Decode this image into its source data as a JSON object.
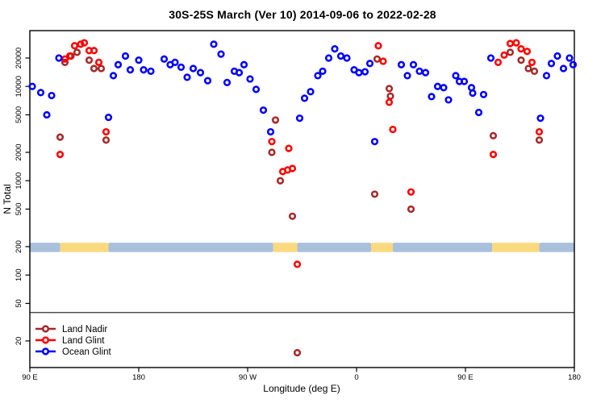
{
  "title": "30S-25S March (Ver 10)   2014-09-06 to 2022-02-28",
  "axes": {
    "x": {
      "label": "Longitude (deg E)",
      "ticks": [
        {
          "lon": 90,
          "label": "90 E"
        },
        {
          "lon": 180,
          "label": "180"
        },
        {
          "lon": 270,
          "label": "90 W"
        },
        {
          "lon": 360,
          "label": "0"
        },
        {
          "lon": 450,
          "label": "90 E"
        },
        {
          "lon": 540,
          "label": "180"
        }
      ]
    },
    "y": {
      "label": "N Total",
      "scale": "log",
      "ticks": [
        20,
        50,
        100,
        200,
        500,
        1000,
        2000,
        5000,
        10000,
        20000
      ]
    }
  },
  "legend": [
    {
      "label": "Land Nadir",
      "color": "#A52A2A"
    },
    {
      "label": "Land Glint",
      "color": "#FF0000"
    },
    {
      "label": "Ocean Glint",
      "color": "#0000FF"
    }
  ],
  "chart_data": {
    "type": "scatter",
    "title": "30S-25S March (Ver 10)   2014-09-06 to 2022-02-28",
    "xlabel": "Longitude (deg E)",
    "ylabel": "N Total",
    "x_axis_deg_e_continuous": [
      90,
      540
    ],
    "y_scale": "log",
    "ylim": [
      10,
      40000
    ],
    "threshold_line_n": 40,
    "marker": "open-circle",
    "series": [
      {
        "name": "Land Nadir",
        "color": "#A52A2A",
        "points": [
          [
            129,
            23000
          ],
          [
            124,
            21000
          ],
          [
            119,
            18000
          ],
          [
            139,
            19000
          ],
          [
            143,
            15500
          ],
          [
            149,
            15500
          ],
          [
            153,
            2700
          ],
          [
            115,
            2900
          ],
          [
            293,
            4400
          ],
          [
            290,
            2000
          ],
          [
            297,
            1000
          ],
          [
            307,
            420
          ],
          [
            311,
            15
          ],
          [
            375,
            720
          ],
          [
            377,
            19500
          ],
          [
            387,
            9500
          ],
          [
            388,
            7900
          ],
          [
            405,
            500
          ],
          [
            473,
            3000
          ],
          [
            487,
            23000
          ],
          [
            496,
            19000
          ],
          [
            502,
            15500
          ],
          [
            507,
            14500
          ],
          [
            511,
            2700
          ]
        ]
      },
      {
        "name": "Land Glint",
        "color": "#FF0000",
        "points": [
          [
            127,
            27000
          ],
          [
            132,
            28000
          ],
          [
            135,
            29000
          ],
          [
            139,
            24000
          ],
          [
            143,
            24000
          ],
          [
            123,
            21000
          ],
          [
            119,
            19500
          ],
          [
            147,
            18000
          ],
          [
            153,
            3300
          ],
          [
            115,
            1900
          ],
          [
            290,
            2600
          ],
          [
            304,
            2200
          ],
          [
            299,
            1250
          ],
          [
            303,
            1300
          ],
          [
            307,
            1350
          ],
          [
            311,
            130
          ],
          [
            378,
            27000
          ],
          [
            382,
            18500
          ],
          [
            387,
            6800
          ],
          [
            390,
            3500
          ],
          [
            405,
            760
          ],
          [
            473,
            1900
          ],
          [
            477,
            18000
          ],
          [
            482,
            21500
          ],
          [
            487,
            28500
          ],
          [
            492,
            29000
          ],
          [
            496,
            25000
          ],
          [
            501,
            23500
          ],
          [
            505,
            18000
          ],
          [
            511,
            3300
          ]
        ]
      },
      {
        "name": "Ocean Glint",
        "color": "#0000FF",
        "points": [
          [
            92,
            10000
          ],
          [
            99,
            8600
          ],
          [
            108,
            8000
          ],
          [
            104,
            5000
          ],
          [
            114,
            20000
          ],
          [
            155,
            4700
          ],
          [
            159,
            13000
          ],
          [
            163,
            17000
          ],
          [
            169,
            21000
          ],
          [
            173,
            15000
          ],
          [
            180,
            19000
          ],
          [
            184,
            15000
          ],
          [
            190,
            14500
          ],
          [
            201,
            19500
          ],
          [
            206,
            17000
          ],
          [
            210,
            18000
          ],
          [
            215,
            16000
          ],
          [
            220,
            12500
          ],
          [
            225,
            15500
          ],
          [
            231,
            14000
          ],
          [
            237,
            11500
          ],
          [
            242,
            28000
          ],
          [
            248,
            22000
          ],
          [
            253,
            11000
          ],
          [
            259,
            14500
          ],
          [
            263,
            14000
          ],
          [
            267,
            17000
          ],
          [
            272,
            12000
          ],
          [
            277,
            9300
          ],
          [
            283,
            5600
          ],
          [
            289,
            3300
          ],
          [
            313,
            4600
          ],
          [
            317,
            7500
          ],
          [
            322,
            8800
          ],
          [
            328,
            13000
          ],
          [
            332,
            14500
          ],
          [
            337,
            20000
          ],
          [
            342,
            25000
          ],
          [
            347,
            21000
          ],
          [
            352,
            20000
          ],
          [
            358,
            15000
          ],
          [
            362,
            14000
          ],
          [
            367,
            14300
          ],
          [
            371,
            17500
          ],
          [
            375,
            2600
          ],
          [
            397,
            17000
          ],
          [
            402,
            13000
          ],
          [
            407,
            17000
          ],
          [
            412,
            14500
          ],
          [
            417,
            14000
          ],
          [
            422,
            7800
          ],
          [
            427,
            10000
          ],
          [
            432,
            9700
          ],
          [
            436,
            7200
          ],
          [
            442,
            13000
          ],
          [
            445,
            11300
          ],
          [
            449,
            11300
          ],
          [
            455,
            9700
          ],
          [
            456,
            8500
          ],
          [
            461,
            5300
          ],
          [
            465,
            8200
          ],
          [
            471,
            20000
          ],
          [
            512,
            4600
          ],
          [
            517,
            13000
          ],
          [
            521,
            17500
          ],
          [
            526,
            21000
          ],
          [
            531,
            15500
          ],
          [
            536,
            20000
          ],
          [
            539,
            17000
          ]
        ]
      }
    ],
    "surface_band": {
      "n_range": [
        175,
        220
      ],
      "ocean_color": "#A9C0DD",
      "land_color": "#FBD97F",
      "segments": [
        {
          "from": 90,
          "to": 115,
          "surface": "ocean"
        },
        {
          "from": 115,
          "to": 155,
          "surface": "land"
        },
        {
          "from": 155,
          "to": 291,
          "surface": "ocean"
        },
        {
          "from": 291,
          "to": 311,
          "surface": "land"
        },
        {
          "from": 311,
          "to": 372,
          "surface": "ocean"
        },
        {
          "from": 372,
          "to": 390,
          "surface": "land"
        },
        {
          "from": 390,
          "to": 472,
          "surface": "ocean"
        },
        {
          "from": 472,
          "to": 511,
          "surface": "land"
        },
        {
          "from": 511,
          "to": 540,
          "surface": "ocean"
        }
      ]
    }
  }
}
